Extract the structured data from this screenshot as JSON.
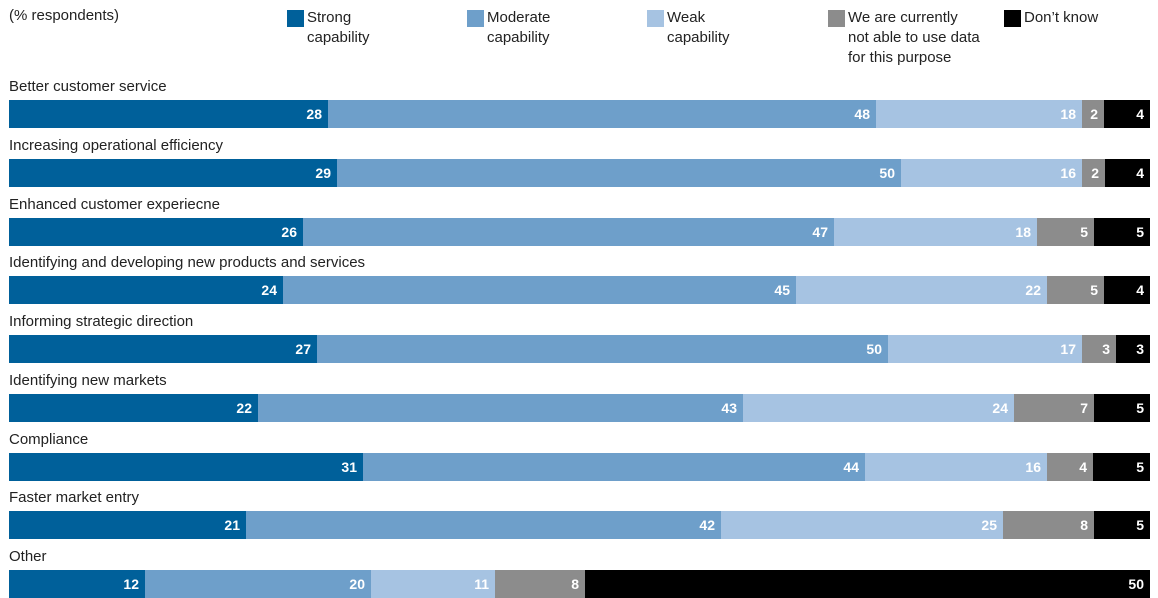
{
  "chart_data": {
    "type": "bar",
    "orientation": "horizontal",
    "stacked": true,
    "subtitle": "(% respondents)",
    "categories": [
      "Better customer service",
      "Increasing operational efficiency",
      "Enhanced customer experiecne",
      "Identifying and developing new products and services",
      "Informing strategic direction",
      "Identifying new markets",
      "Compliance",
      "Faster market entry",
      "Other"
    ],
    "series": [
      {
        "name": "Strong capability",
        "color": "#00609a",
        "values": [
          28,
          29,
          26,
          24,
          27,
          22,
          31,
          21,
          12
        ]
      },
      {
        "name": "Moderate capability",
        "color": "#6e9fca",
        "values": [
          48,
          50,
          47,
          45,
          50,
          43,
          44,
          42,
          20
        ]
      },
      {
        "name": "Weak capability",
        "color": "#a6c3e2",
        "values": [
          18,
          16,
          18,
          22,
          17,
          24,
          16,
          25,
          11
        ]
      },
      {
        "name": "We are currently not able to use data for this purpose",
        "color": "#8c8c8c",
        "values": [
          2,
          2,
          5,
          5,
          3,
          7,
          4,
          8,
          8
        ]
      },
      {
        "name": "Don’t know",
        "color": "#000000",
        "values": [
          4,
          4,
          5,
          4,
          3,
          5,
          5,
          5,
          50
        ]
      }
    ],
    "legend": {
      "position": "top",
      "entries": [
        [
          "Strong",
          "capability"
        ],
        [
          "Moderate",
          "capability"
        ],
        [
          "Weak",
          "capability"
        ],
        [
          "We are currently",
          "not able to use data",
          "for this purpose"
        ],
        [
          "Don’t know"
        ]
      ]
    },
    "data_labels": true,
    "grid": false
  }
}
